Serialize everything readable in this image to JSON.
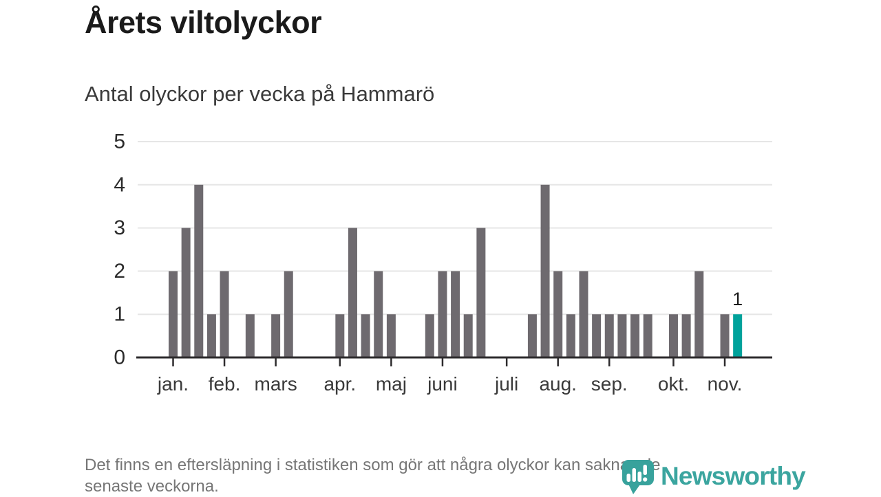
{
  "header": {
    "title": "Årets viltolyckor",
    "subtitle": "Antal olyckor per vecka på Hammarö"
  },
  "chart_data": {
    "type": "bar",
    "title": "Antal olyckor per vecka på Hammarö",
    "xlabel": "",
    "ylabel": "",
    "x_unit": "vecka",
    "first_week": 1,
    "values": [
      2,
      3,
      4,
      1,
      2,
      0,
      1,
      0,
      1,
      2,
      0,
      0,
      0,
      1,
      3,
      1,
      2,
      1,
      0,
      0,
      1,
      2,
      2,
      1,
      3,
      0,
      0,
      0,
      1,
      4,
      2,
      1,
      2,
      1,
      1,
      1,
      1,
      1,
      0,
      1,
      1,
      2,
      0,
      1,
      1
    ],
    "ylim": [
      0,
      5
    ],
    "y_ticks": [
      0,
      1,
      2,
      3,
      4,
      5
    ],
    "grid": true,
    "legend": "none",
    "bar_color": "#6e6a6f",
    "highlight": {
      "week": 45,
      "value": 1,
      "label": "1",
      "color": "#00a29b"
    },
    "month_ticks": [
      {
        "label": "jan.",
        "week": 1
      },
      {
        "label": "feb.",
        "week": 5
      },
      {
        "label": "mars",
        "week": 9
      },
      {
        "label": "apr.",
        "week": 14
      },
      {
        "label": "maj",
        "week": 18
      },
      {
        "label": "juni",
        "week": 22
      },
      {
        "label": "juli",
        "week": 27
      },
      {
        "label": "aug.",
        "week": 31
      },
      {
        "label": "sep.",
        "week": 35
      },
      {
        "label": "okt.",
        "week": 40
      },
      {
        "label": "nov.",
        "week": 44
      }
    ]
  },
  "footer": {
    "lines": [
      "Det finns en eftersläpning i statistiken som gör att några olyckor kan saknas de",
      "senaste veckorna."
    ]
  },
  "logo": {
    "text": "Newsworthy",
    "color": "#3ba59f"
  },
  "colors": {
    "bar": "#6e6a6f",
    "highlight": "#00a29b",
    "axis": "#2d2b2d",
    "grid": "#e6e6e6",
    "title": "#1a1a1a",
    "subtitle": "#3a3a3a",
    "footnote": "#767676"
  }
}
